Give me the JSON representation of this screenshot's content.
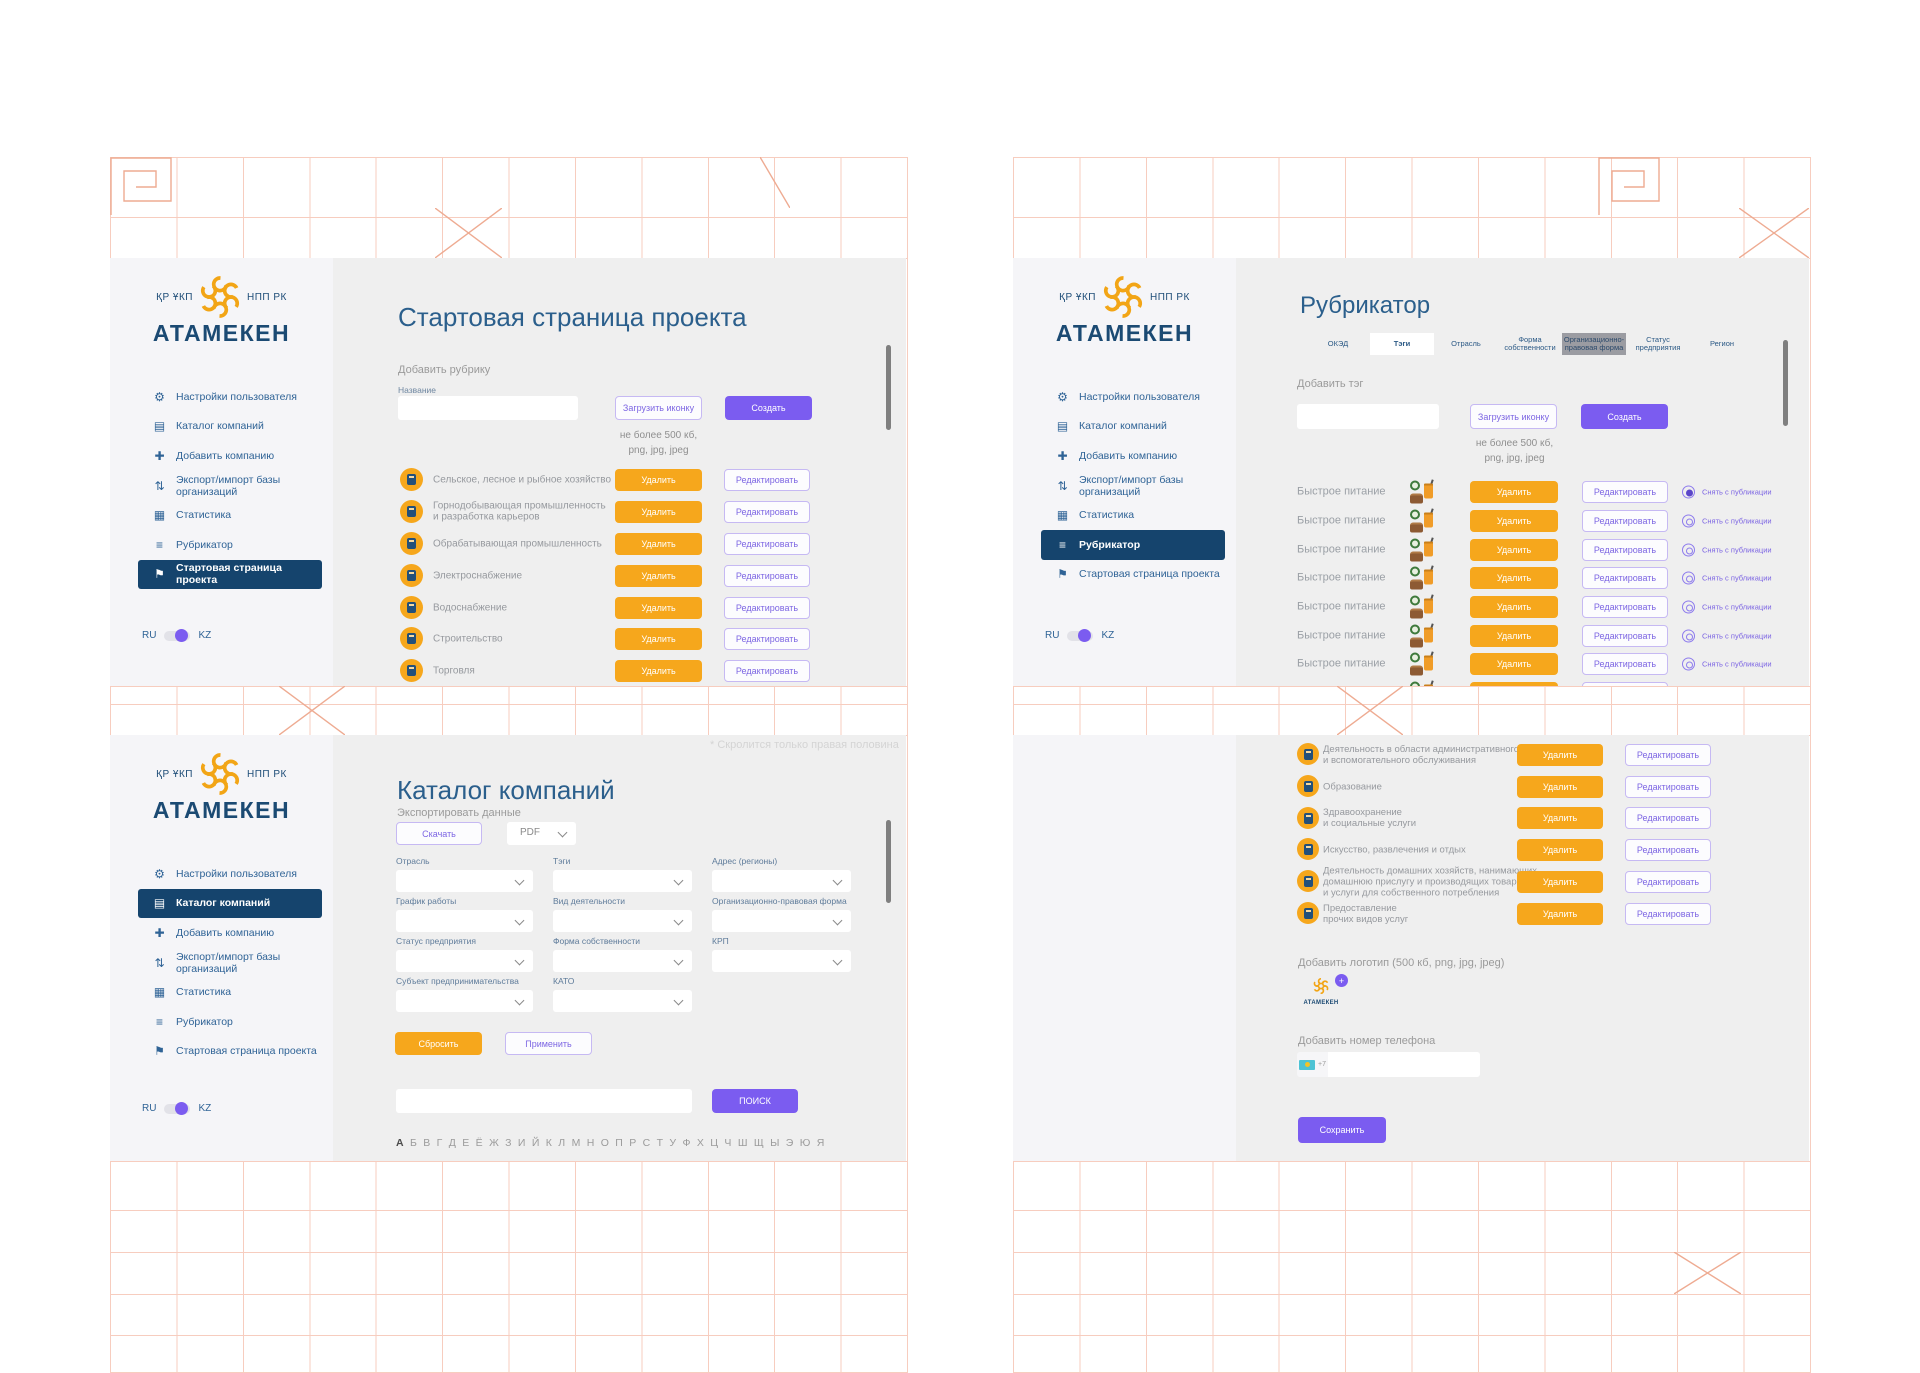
{
  "logo": {
    "left": "ҚР ҰКП",
    "right": "НПП РК",
    "name": "АТАМЕКЕН"
  },
  "language": {
    "ru": "RU",
    "kz": "KZ"
  },
  "sidebar": {
    "items": [
      {
        "label": "Настройки пользователя",
        "glyph": "⚙",
        "icon": "user-settings-icon"
      },
      {
        "label": "Каталог компаний",
        "glyph": "▤",
        "icon": "companies-catalog-icon"
      },
      {
        "label": "Добавить компанию",
        "glyph": "✚",
        "icon": "add-company-icon"
      },
      {
        "label": "Экспорт/импорт базы организаций",
        "glyph": "⇅",
        "icon": "export-import-icon"
      },
      {
        "label": "Статистика",
        "glyph": "▦",
        "icon": "statistics-icon"
      },
      {
        "label": "Рубрикатор",
        "glyph": "≡",
        "icon": "rubricator-icon"
      },
      {
        "label": "Стартовая страница проекта",
        "glyph": "⚑",
        "icon": "start-page-icon"
      }
    ]
  },
  "buttons": {
    "delete": "Удалить",
    "edit": "Редактировать",
    "upload_icon": "Загрузить иконку",
    "create": "Создать"
  },
  "upload_hint": {
    "line1": "не более 500 кб,",
    "line2": "png, jpg, jpeg"
  },
  "panels": {
    "start_page": {
      "title": "Стартовая страница проекта",
      "selected_menu": "Стартовая страница проекта",
      "add_section_label": "Добавить рубрику",
      "name_field_label": "Название",
      "name_field_value": "",
      "categories": [
        "Сельское, лесное и рыбное хозяйство",
        "Горнодобывающая промышленность\nи разработка карьеров",
        "Обрабатывающая промышленность",
        "Электроснабжение",
        "Водоснабжение",
        "Строительство",
        "Торговля"
      ]
    },
    "rubricator": {
      "title": "Рубрикатор",
      "selected_menu": "Рубрикатор",
      "tabs": [
        "ОКЭД",
        "Тэги",
        "Отрасль",
        "Форма собственности",
        "Организационно-правовая форма",
        "Статус предприятия",
        "Регион"
      ],
      "selected_tab": "Тэги",
      "highlighted_tab": "Организационно-правовая форма",
      "add_section_label": "Добавить тэг",
      "tag_field_value": "",
      "unpublish_label": "Снять с публикации",
      "tags": [
        "Быстрое питание",
        "Быстрое питание",
        "Быстрое питание",
        "Быстрое питание",
        "Быстрое питание",
        "Быстрое питание",
        "Быстрое питание",
        "Быстрое питание"
      ]
    },
    "catalog": {
      "title": "Каталог компаний",
      "selected_menu": "Каталог компаний",
      "export_label": "Экспортировать данные",
      "download_button": "Скачать",
      "format_value": "PDF",
      "filters": [
        "Отрасль",
        "Тэги",
        "Адрес (регионы)",
        "График работы",
        "Вид деятельности",
        "Организационно-правовая форма",
        "Статус предприятия",
        "Форма собственности",
        "КРП",
        "Субъект предпринимательства",
        "КАТО"
      ],
      "reset_button": "Сбросить",
      "apply_button": "Применить",
      "search_value": "",
      "search_button": "ПОИСК",
      "alphabet": [
        "А",
        "Б",
        "В",
        "Г",
        "Д",
        "Е",
        "Ё",
        "Ж",
        "З",
        "И",
        "Й",
        "К",
        "Л",
        "М",
        "Н",
        "О",
        "П",
        "Р",
        "С",
        "Т",
        "У",
        "Ф",
        "Х",
        "Ц",
        "Ч",
        "Ш",
        "Щ",
        "Ы",
        "Э",
        "Ю",
        "Я"
      ]
    },
    "rubricator_scrolled": {
      "categories": [
        "Деятельность в области административного\nи вспомогательного обслуживания",
        "Образование",
        "Здравоохранение\nи социальные услуги",
        "Искусство, развлечения и отдых",
        "Деятельность домашних хозяйств, нанимающих\nдомашнюю прислугу  и производящих товары\nи услуги для собственного потребления",
        "Предоставление\nпрочих видов услуг"
      ],
      "add_logo_label": "Добавить логотип (500 кб, png, jpg, jpeg)",
      "logo_name": "АТАМЕКЕН",
      "add_phone_label": "Добавить номер телефона",
      "phone_prefix": "+7",
      "phone_value": "",
      "save_button": "Сохранить"
    }
  },
  "annotations": {
    "scroll_note": "* Скролится только правая половина"
  },
  "colors": {
    "orange": "#F6A71C",
    "purple": "#7B5CF0",
    "navy": "#15446D",
    "menu_text": "#2F6396",
    "content_bg": "#EFEFEF",
    "sidebar_bg": "#F5F5F8",
    "grid_line": "#F7CDBF"
  }
}
